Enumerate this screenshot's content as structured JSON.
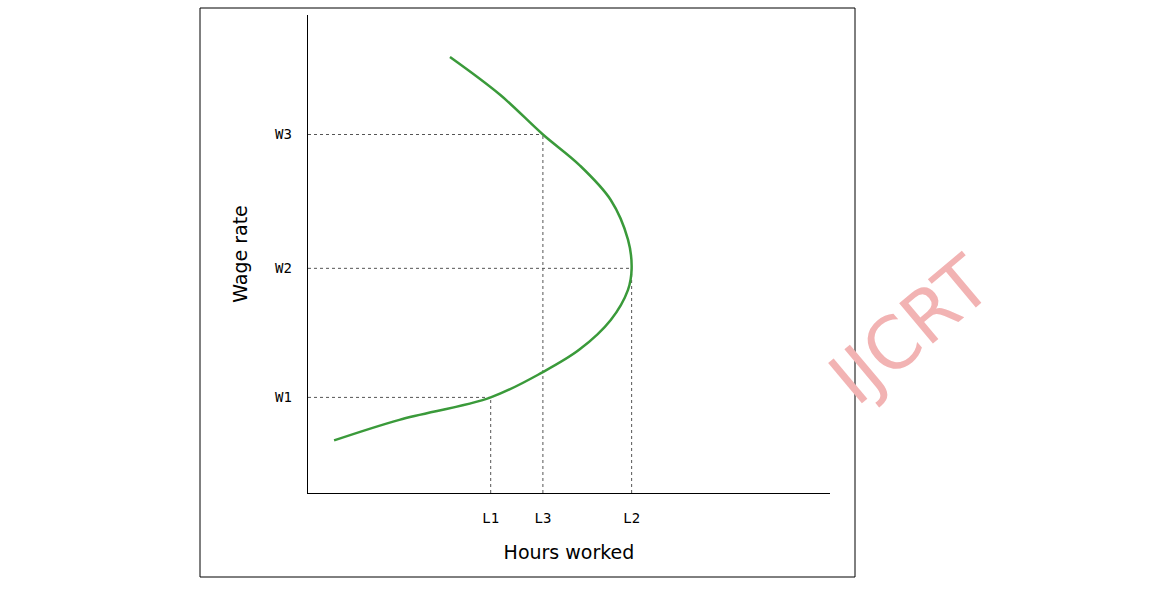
{
  "chart_data": {
    "type": "line",
    "x_label": "Hours worked",
    "y_label": "Wage rate",
    "x": [
      5,
      17.5,
      35,
      45,
      52,
      58,
      61.3,
      62,
      61.3,
      58,
      52,
      45,
      36.8,
      27.2
    ],
    "values": [
      11,
      15.3,
      20,
      25.3,
      30,
      36.2,
      42.5,
      47,
      53,
      61.3,
      68.6,
      75,
      83.3,
      91.2
    ],
    "color": "#3a9a3a",
    "line_style": "solid",
    "xlim": [
      0,
      100
    ],
    "ylim": [
      0,
      100
    ],
    "xticks": [
      {
        "value": 35,
        "label": "L1"
      },
      {
        "value": 45,
        "label": "L3"
      },
      {
        "value": 62,
        "label": "L2"
      }
    ],
    "yticks": [
      {
        "value": 20,
        "label": "W1"
      },
      {
        "value": 47,
        "label": "W2"
      },
      {
        "value": 75,
        "label": "W3"
      }
    ],
    "guides": [
      [
        35,
        20
      ],
      [
        62,
        47
      ],
      [
        45,
        75
      ]
    ],
    "grid": false,
    "annotations": [
      "IJCRT"
    ]
  }
}
